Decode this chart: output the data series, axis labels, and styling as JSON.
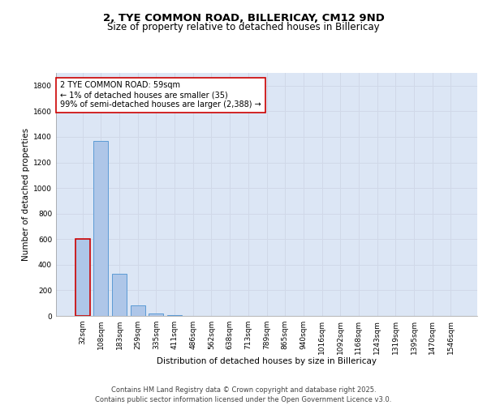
{
  "title_line1": "2, TYE COMMON ROAD, BILLERICAY, CM12 9ND",
  "title_line2": "Size of property relative to detached houses in Billericay",
  "xlabel": "Distribution of detached houses by size in Billericay",
  "ylabel": "Number of detached properties",
  "categories": [
    "32sqm",
    "108sqm",
    "183sqm",
    "259sqm",
    "335sqm",
    "411sqm",
    "486sqm",
    "562sqm",
    "638sqm",
    "713sqm",
    "789sqm",
    "865sqm",
    "940sqm",
    "1016sqm",
    "1092sqm",
    "1168sqm",
    "1243sqm",
    "1319sqm",
    "1395sqm",
    "1470sqm",
    "1546sqm"
  ],
  "values": [
    600,
    1370,
    330,
    85,
    20,
    5,
    0,
    0,
    0,
    0,
    0,
    0,
    0,
    0,
    0,
    0,
    0,
    0,
    0,
    0,
    0
  ],
  "bar_color": "#aec6e8",
  "bar_edge_color": "#5b9bd5",
  "annotation_box_text": "2 TYE COMMON ROAD: 59sqm\n← 1% of detached houses are smaller (35)\n99% of semi-detached houses are larger (2,388) →",
  "annotation_box_color": "#ffffff",
  "annotation_box_edge_color": "#cc0000",
  "highlight_bar_idx": 0,
  "highlight_bar_edge_color": "#cc0000",
  "ylim": [
    0,
    1900
  ],
  "yticks": [
    0,
    200,
    400,
    600,
    800,
    1000,
    1200,
    1400,
    1600,
    1800
  ],
  "grid_color": "#d0d8e8",
  "background_color": "#dce6f5",
  "footer_text": "Contains HM Land Registry data © Crown copyright and database right 2025.\nContains public sector information licensed under the Open Government Licence v3.0.",
  "title_fontsize": 9.5,
  "subtitle_fontsize": 8.5,
  "axis_label_fontsize": 7.5,
  "tick_fontsize": 6.5,
  "annotation_fontsize": 7,
  "footer_fontsize": 6
}
